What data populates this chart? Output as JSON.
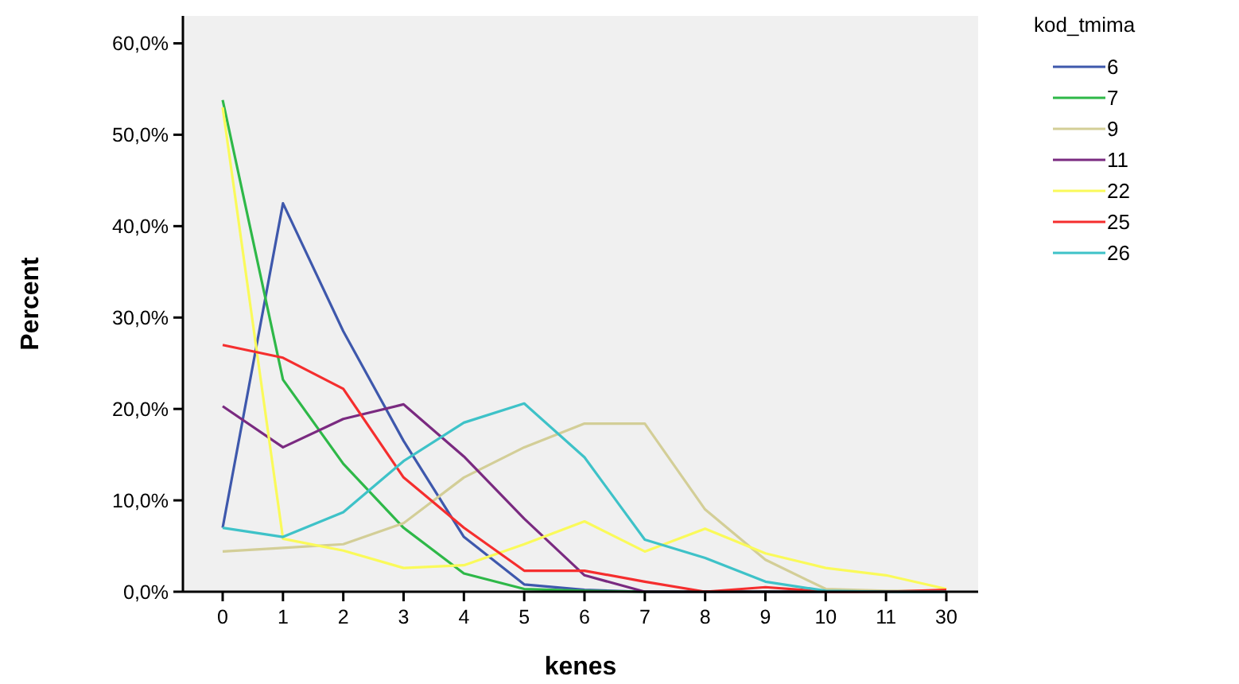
{
  "chart_data": {
    "type": "line",
    "xlabel": "kenes",
    "ylabel": "Percent",
    "legend_title": "kod_tmima",
    "legend": "top right",
    "grid": false,
    "categories": [
      "0",
      "1",
      "2",
      "3",
      "4",
      "5",
      "6",
      "7",
      "8",
      "9",
      "10",
      "11",
      "30"
    ],
    "ylim": [
      0,
      63
    ],
    "yticks": [
      {
        "value": 0,
        "label": "0,0%"
      },
      {
        "value": 10,
        "label": "10,0%"
      },
      {
        "value": 20,
        "label": "20,0%"
      },
      {
        "value": 30,
        "label": "30,0%"
      },
      {
        "value": 40,
        "label": "40,0%"
      },
      {
        "value": 50,
        "label": "50,0%"
      },
      {
        "value": 60,
        "label": "60,0%"
      }
    ],
    "series": [
      {
        "name": "6",
        "color": "#3e58ac",
        "values": [
          7,
          42.5,
          28.5,
          16.5,
          6,
          0.8,
          0.2,
          0,
          0,
          0,
          0,
          0,
          0
        ]
      },
      {
        "name": "7",
        "color": "#2eb848",
        "values": [
          53.8,
          23.2,
          14,
          7,
          2,
          0.3,
          0.1,
          0,
          0,
          0,
          0,
          0,
          0
        ]
      },
      {
        "name": "9",
        "color": "#d3ce97",
        "values": [
          4.4,
          4.8,
          5.2,
          7.5,
          12.5,
          15.8,
          18.4,
          18.4,
          9,
          3.5,
          0.3,
          0.1,
          0.1
        ]
      },
      {
        "name": "11",
        "color": "#7a2a80",
        "values": [
          20.3,
          15.8,
          18.9,
          20.5,
          14.8,
          8,
          1.8,
          0,
          0,
          0,
          0,
          0,
          0
        ]
      },
      {
        "name": "22",
        "color": "#fafa5a",
        "values": [
          53,
          5.8,
          4.5,
          2.6,
          2.9,
          5.2,
          7.7,
          4.4,
          6.9,
          4.2,
          2.6,
          1.8,
          0.3
        ]
      },
      {
        "name": "25",
        "color": "#f52e2e",
        "values": [
          27,
          25.6,
          22.2,
          12.5,
          7,
          2.3,
          2.3,
          1.1,
          0,
          0.5,
          0,
          0,
          0.2
        ]
      },
      {
        "name": "26",
        "color": "#3ec2c8",
        "values": [
          7,
          6,
          8.7,
          14.3,
          18.5,
          20.6,
          14.7,
          5.7,
          3.7,
          1.1,
          0.1,
          0,
          0
        ]
      }
    ]
  }
}
